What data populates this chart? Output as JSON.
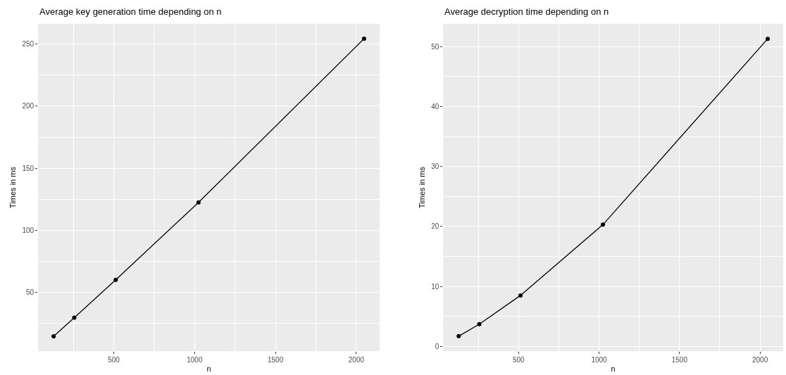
{
  "chart_data": [
    {
      "type": "line",
      "title": "Average key generation time depending on n",
      "xlabel": "n",
      "ylabel": "Times in ms",
      "x": [
        128,
        256,
        512,
        1024,
        2048
      ],
      "series": [
        {
          "color": "#000000",
          "values": [
            14.3,
            29.3,
            59.9,
            122.3,
            254.5
          ]
        }
      ],
      "xlim": [
        32,
        2144
      ],
      "xticks": [
        500,
        1000,
        1500,
        2000
      ],
      "ylim": [
        2.3,
        266.5
      ],
      "yticks": [
        50,
        100,
        150,
        200,
        250
      ],
      "grid": true,
      "marker": "circle",
      "line_style": "solid"
    },
    {
      "type": "line",
      "title": "Average decryption time depending on n",
      "xlabel": "n",
      "ylabel": "Times in ms",
      "x": [
        128,
        256,
        512,
        1024,
        2048
      ],
      "series": [
        {
          "color": "#000000",
          "values": [
            1.7,
            3.7,
            8.5,
            20.3,
            51.3
          ]
        }
      ],
      "xlim": [
        32,
        2144
      ],
      "xticks": [
        500,
        1000,
        1500,
        2000
      ],
      "ylim": [
        -0.8,
        53.8
      ],
      "yticks": [
        0,
        10,
        20,
        30,
        40,
        50
      ],
      "grid": true,
      "marker": "circle",
      "line_style": "solid"
    }
  ]
}
